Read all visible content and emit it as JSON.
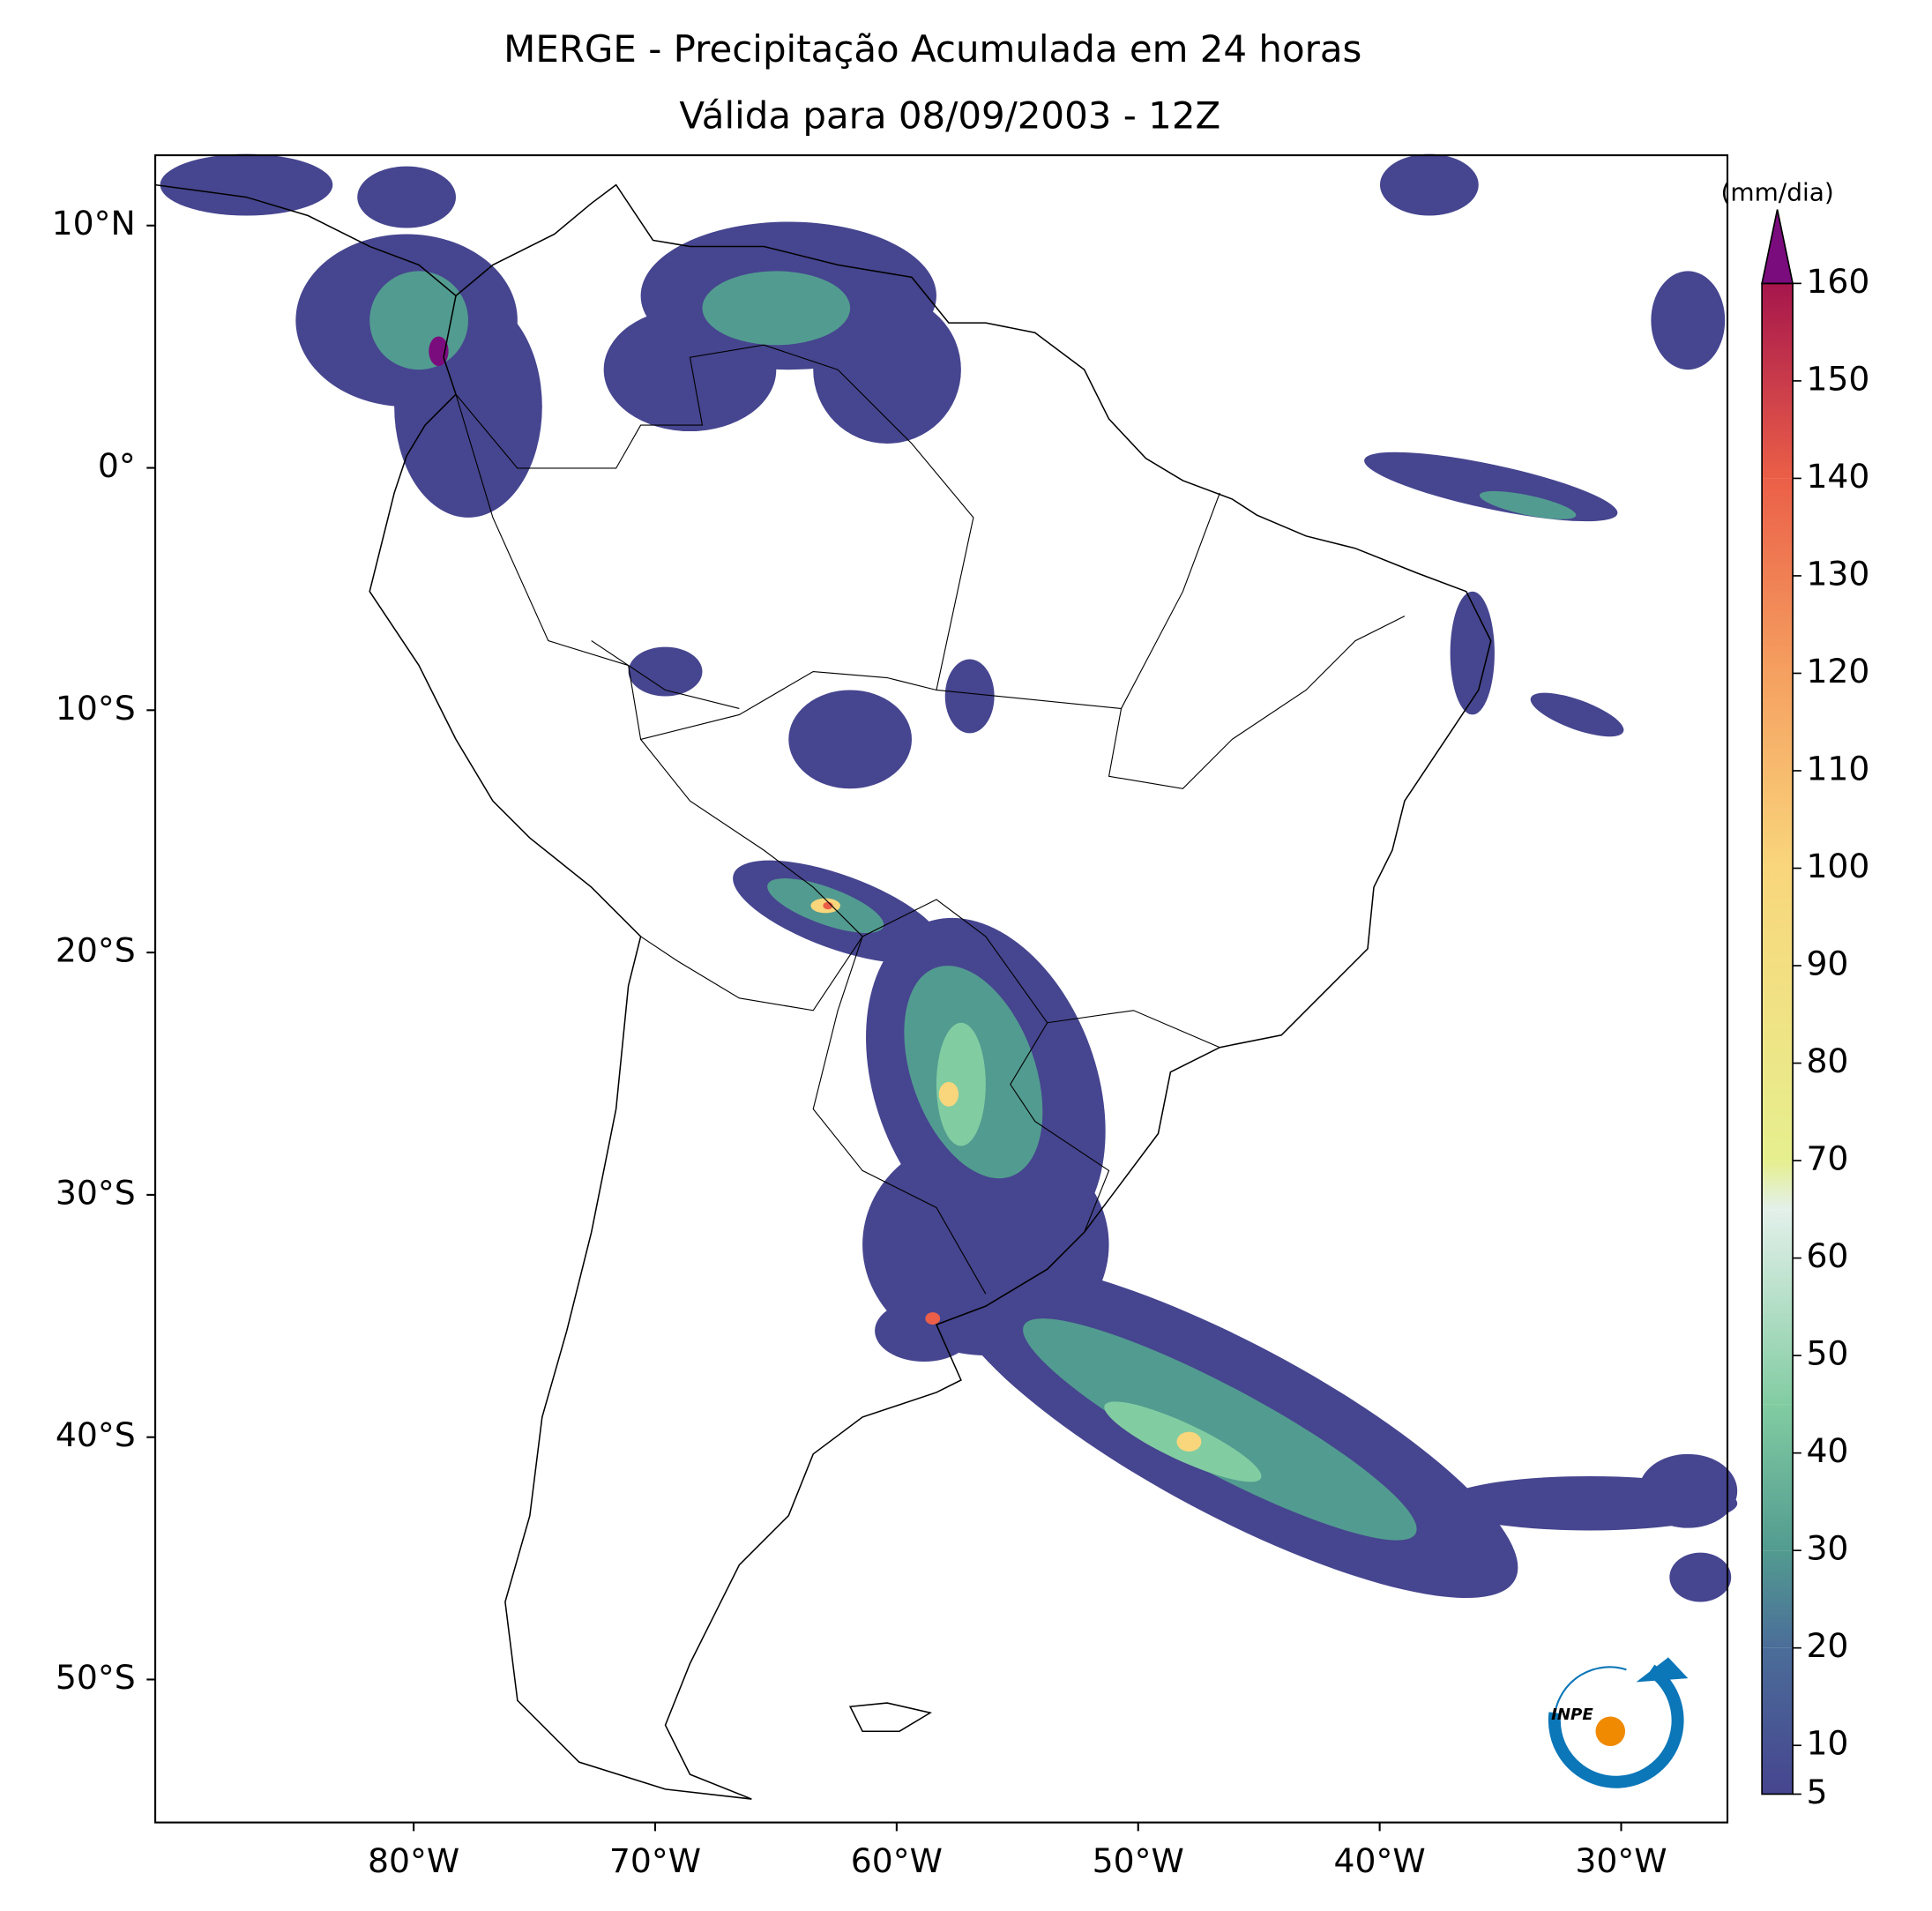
{
  "chart_data": {
    "type": "map",
    "title": "MERGE - Precipitação Acumulada em 24 horas",
    "subtitle": "Válida para 08/09/2003 - 12Z",
    "xlim": [
      -90.7,
      -25.6
    ],
    "ylim": [
      -55.9,
      12.9
    ],
    "xticks": [
      {
        "value": -80,
        "label": "80°W"
      },
      {
        "value": -70,
        "label": "70°W"
      },
      {
        "value": -60,
        "label": "60°W"
      },
      {
        "value": -50,
        "label": "50°W"
      },
      {
        "value": -40,
        "label": "40°W"
      },
      {
        "value": -30,
        "label": "30°W"
      }
    ],
    "yticks": [
      {
        "value": 10,
        "label": "10°N"
      },
      {
        "value": 0,
        "label": "0°"
      },
      {
        "value": -10,
        "label": "10°S"
      },
      {
        "value": -20,
        "label": "20°S"
      },
      {
        "value": -30,
        "label": "30°S"
      },
      {
        "value": -40,
        "label": "40°S"
      },
      {
        "value": -50,
        "label": "50°S"
      }
    ],
    "colorbar": {
      "label": "(mm/dia)",
      "lim": [
        5,
        160
      ],
      "ticks": [
        5,
        10,
        20,
        30,
        40,
        50,
        60,
        70,
        80,
        90,
        100,
        110,
        120,
        130,
        140,
        150,
        160
      ],
      "extend_color": "#7b0c7d",
      "colormap": [
        {
          "value": 5,
          "color": "#46458f"
        },
        {
          "value": 20,
          "color": "#4b6d99"
        },
        {
          "value": 30,
          "color": "#529b90"
        },
        {
          "value": 45,
          "color": "#82cca2"
        },
        {
          "value": 65,
          "color": "#e3f0ea"
        },
        {
          "value": 70,
          "color": "#e6ef8e"
        },
        {
          "value": 100,
          "color": "#f9d67c"
        },
        {
          "value": 120,
          "color": "#f5a060"
        },
        {
          "value": 140,
          "color": "#eb5f48"
        },
        {
          "value": 160,
          "color": "#a6164c"
        }
      ]
    },
    "logo_text": "INPE"
  }
}
